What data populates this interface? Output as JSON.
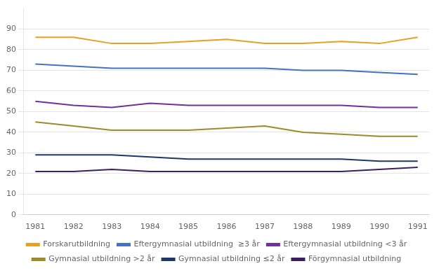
{
  "chart_data": {
    "type": "line",
    "x": [
      1981,
      1982,
      1983,
      1984,
      1985,
      1986,
      1987,
      1988,
      1989,
      1990,
      1991
    ],
    "series": [
      {
        "name": "Forskarutbildning",
        "color": "#E8A020",
        "values": [
          86,
          86,
          83,
          83,
          84,
          85,
          83,
          83,
          84,
          83,
          86
        ]
      },
      {
        "name": "Eftergymnasial utbildning  ≥3 år",
        "color": "#4472C4",
        "values": [
          73,
          72,
          71,
          71,
          71,
          71,
          71,
          70,
          70,
          69,
          68
        ]
      },
      {
        "name": "Eftergymnasial utbildning <3 år",
        "color": "#7030A0",
        "values": [
          55,
          53,
          52,
          54,
          53,
          53,
          53,
          53,
          53,
          52,
          52
        ]
      },
      {
        "name": "Gymnasial utbildning >2 år",
        "color": "#9B8B2A",
        "values": [
          45,
          43,
          41,
          41,
          41,
          42,
          43,
          40,
          39,
          38,
          38
        ]
      },
      {
        "name": "Gymnasial utbildning ≤2 år",
        "color": "#1F3864",
        "values": [
          29,
          29,
          29,
          28,
          27,
          27,
          27,
          27,
          27,
          26,
          26
        ]
      },
      {
        "name": "Förgymnasial utbildning",
        "color": "#3B1F5E",
        "values": [
          21,
          21,
          22,
          21,
          21,
          21,
          21,
          21,
          21,
          22,
          23
        ]
      }
    ],
    "xlim": [
      1980.7,
      1991.3
    ],
    "xticks": [
      1981,
      1982,
      1983,
      1984,
      1985,
      1986,
      1987,
      1988,
      1989,
      1990,
      1991
    ],
    "ylim": [
      0,
      100
    ],
    "yticks": [
      0,
      10,
      20,
      30,
      40,
      50,
      60,
      70,
      80,
      90
    ],
    "grid": true,
    "legend": "bottom"
  }
}
